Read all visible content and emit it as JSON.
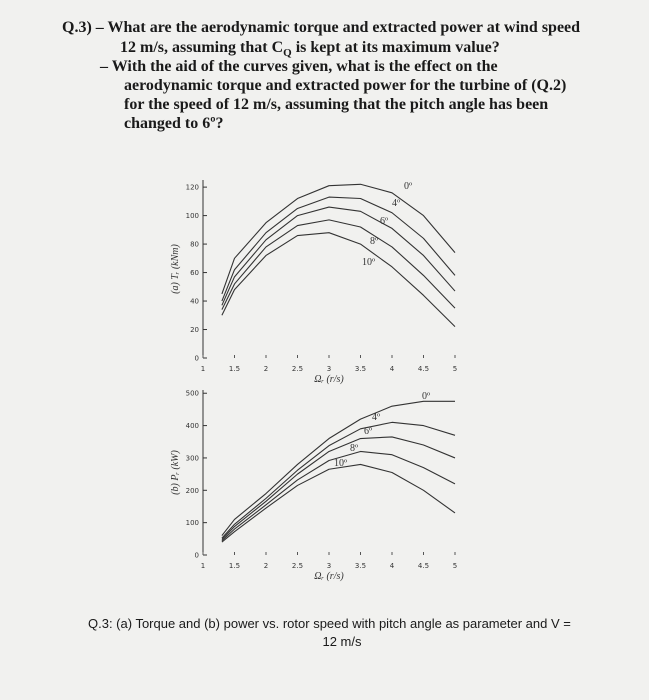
{
  "question": {
    "lines": [
      [
        "Q.3) – What are the aerodynamic torque and extracted power at wind speed"
      ],
      [
        "12 m/s, assuming that C",
        "Q",
        " is kept at its maximum value?"
      ],
      [
        "–  With the aid of the curves given, what is the effect on the"
      ],
      [
        "aerodynamic torque and extracted power for the turbine of (Q.2)"
      ],
      [
        "for the speed of 12 m/s, assuming that the pitch angle has been"
      ],
      [
        "changed to 6º?"
      ]
    ]
  },
  "caption": [
    "Q.3: (a) Torque and (b) power vs. rotor speed with pitch angle as parameter and V =",
    "12 m/s"
  ],
  "chart_data": [
    {
      "type": "line",
      "y_label": "(a) Tᵣ (kNm)",
      "x_label": "Ωᵣ (r/s)",
      "x": [
        1.3,
        1.5,
        2,
        2.5,
        3,
        3.5,
        4,
        4.5,
        5
      ],
      "xlim": [
        1,
        5
      ],
      "xticks": [
        1,
        1.5,
        2,
        2.5,
        3,
        3.5,
        4,
        4.5,
        5
      ],
      "ylim": [
        0,
        125
      ],
      "yticks": [
        0,
        20,
        40,
        60,
        80,
        100,
        120
      ],
      "series": [
        {
          "name": "0º",
          "color": "#333333",
          "values": [
            45,
            70,
            95,
            112,
            121,
            122,
            116,
            100,
            74
          ]
        },
        {
          "name": "4º",
          "color": "#333333",
          "values": [
            40,
            62,
            88,
            105,
            113,
            112,
            102,
            84,
            58
          ]
        },
        {
          "name": "6º",
          "color": "#333333",
          "values": [
            37,
            57,
            83,
            100,
            106,
            103,
            91,
            72,
            47
          ]
        },
        {
          "name": "8º",
          "color": "#333333",
          "values": [
            34,
            52,
            78,
            93,
            97,
            92,
            78,
            58,
            35
          ]
        },
        {
          "name": "10º",
          "color": "#333333",
          "values": [
            30,
            48,
            72,
            86,
            88,
            80,
            64,
            44,
            22
          ]
        }
      ]
    },
    {
      "type": "line",
      "y_label": "(b) Pᵣ (kW)",
      "x_label": "Ωᵣ (r/s)",
      "x": [
        1.3,
        1.5,
        2,
        2.5,
        3,
        3.5,
        4,
        4.5,
        5
      ],
      "xlim": [
        1,
        5
      ],
      "xticks": [
        1,
        1.5,
        2,
        2.5,
        3,
        3.5,
        4,
        4.5,
        5
      ],
      "ylim": [
        0,
        510
      ],
      "yticks": [
        0,
        100,
        200,
        300,
        400,
        500
      ],
      "series": [
        {
          "name": "0º",
          "color": "#333333",
          "values": [
            60,
            110,
            190,
            280,
            360,
            420,
            460,
            475,
            475
          ]
        },
        {
          "name": "4º",
          "color": "#333333",
          "values": [
            52,
            95,
            175,
            262,
            338,
            390,
            410,
            400,
            370
          ]
        },
        {
          "name": "6º",
          "color": "#333333",
          "values": [
            48,
            88,
            166,
            250,
            320,
            360,
            365,
            340,
            300
          ]
        },
        {
          "name": "8º",
          "color": "#333333",
          "values": [
            44,
            80,
            155,
            232,
            292,
            320,
            310,
            270,
            220
          ]
        },
        {
          "name": "10º",
          "color": "#333333",
          "values": [
            40,
            72,
            145,
            215,
            265,
            280,
            255,
            200,
            130
          ]
        }
      ]
    }
  ]
}
